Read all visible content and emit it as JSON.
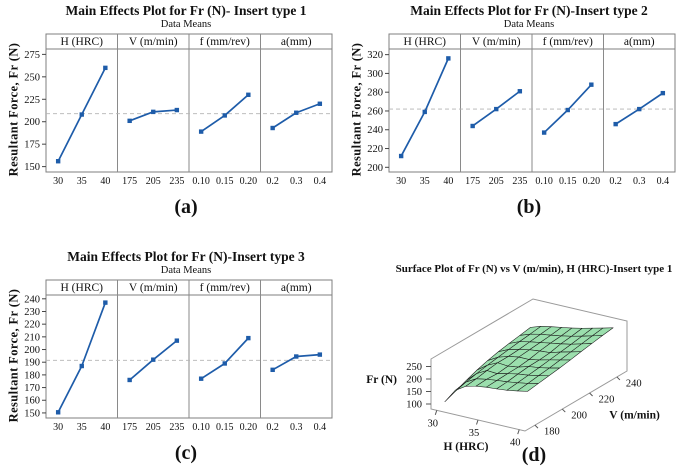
{
  "figure": {
    "background": "#ffffff",
    "accent_line_color": "#1E5CA9",
    "frame_color": "#7f7f7f",
    "mean_line_color": "#b3b3b3"
  },
  "chart_data": [
    {
      "id": "a",
      "type": "line",
      "variant": "main-effects",
      "title": "Main Effects Plot for Fr (N)- Insert type 1",
      "subtitle": "Data Means",
      "ylabel": "Resultant Force, Fr (N)",
      "caption": "(a)",
      "ylim": [
        144,
        281
      ],
      "yticks": [
        150,
        175,
        200,
        225,
        250,
        275
      ],
      "mean_line": 209,
      "line_color": "#1E5CA9",
      "marker": "square",
      "panels": [
        {
          "factor": "H (HRC)",
          "categories": [
            "30",
            "35",
            "40"
          ],
          "values": [
            156,
            208,
            260
          ]
        },
        {
          "factor": "V (m/min)",
          "categories": [
            "175",
            "205",
            "235"
          ],
          "values": [
            201,
            211,
            213
          ]
        },
        {
          "factor": "f (mm/rev)",
          "categories": [
            "0.10",
            "0.15",
            "0.20"
          ],
          "values": [
            189,
            207,
            230
          ]
        },
        {
          "factor": "a(mm)",
          "categories": [
            "0.2",
            "0.3",
            "0.4"
          ],
          "values": [
            193,
            210,
            220
          ]
        }
      ]
    },
    {
      "id": "b",
      "type": "line",
      "variant": "main-effects",
      "title": "Main Effects Plot for Fr (N)-Insert type 2",
      "subtitle": "Data Means",
      "ylabel": "Resultant Force, Fr (N)",
      "caption": "(b)",
      "ylim": [
        195,
        326
      ],
      "yticks": [
        200,
        220,
        240,
        260,
        280,
        300,
        320
      ],
      "mean_line": 262,
      "line_color": "#1E5CA9",
      "marker": "square",
      "panels": [
        {
          "factor": "H (HRC)",
          "categories": [
            "30",
            "35",
            "40"
          ],
          "values": [
            212,
            259,
            316
          ]
        },
        {
          "factor": "V (m/min)",
          "categories": [
            "175",
            "205",
            "235"
          ],
          "values": [
            244,
            262,
            281
          ]
        },
        {
          "factor": "f (mm/rev)",
          "categories": [
            "0.10",
            "0.15",
            "0.20"
          ],
          "values": [
            237,
            261,
            288
          ]
        },
        {
          "factor": "a(mm)",
          "categories": [
            "0.2",
            "0.3",
            "0.4"
          ],
          "values": [
            246,
            262,
            279
          ]
        }
      ]
    },
    {
      "id": "c",
      "type": "line",
      "variant": "main-effects",
      "title": "Main Effects Plot for Fr (N)-Insert type 3",
      "subtitle": "Data Means",
      "ylabel": "Resultant Force, Fr (N)",
      "caption": "(c)",
      "ylim": [
        146,
        243
      ],
      "yticks": [
        150,
        160,
        170,
        180,
        190,
        200,
        210,
        220,
        230,
        240
      ],
      "mean_line": 191.5,
      "line_color": "#1E5CA9",
      "marker": "square",
      "panels": [
        {
          "factor": "H (HRC)",
          "categories": [
            "30",
            "35",
            "40"
          ],
          "values": [
            150.5,
            187,
            237
          ]
        },
        {
          "factor": "V (m/min)",
          "categories": [
            "175",
            "205",
            "235"
          ],
          "values": [
            176,
            192,
            207
          ]
        },
        {
          "factor": "f (mm/rev)",
          "categories": [
            "0.10",
            "0.15",
            "0.20"
          ],
          "values": [
            177,
            189,
            209
          ]
        },
        {
          "factor": "a(mm)",
          "categories": [
            "0.2",
            "0.3",
            "0.4"
          ],
          "values": [
            184,
            194.5,
            196
          ]
        }
      ]
    },
    {
      "id": "d",
      "type": "surface",
      "title": "Surface Plot of Fr (N) vs V (m/min), H (HRC)-Insert type 1",
      "caption": "(d)",
      "xlabel": "H (HRC)",
      "ylabel": "V (m/min)",
      "zlabel": "Fr (N)",
      "xticks": [
        30,
        35,
        40
      ],
      "yticks": [
        180,
        200,
        220,
        240
      ],
      "zticks": [
        100,
        150,
        200,
        250
      ],
      "x_range": [
        30,
        40
      ],
      "y_range": [
        180,
        240
      ],
      "z_range_display": [
        80,
        280
      ],
      "surface_color": "#9BDFAD",
      "mesh_color": "#1a1a1a",
      "x_values": [
        30,
        31.25,
        32.5,
        33.75,
        35,
        36.25,
        37.5,
        38.75,
        40
      ],
      "y_values": [
        180,
        187.5,
        195,
        202.5,
        210,
        217.5,
        225,
        232.5,
        240
      ],
      "z_grid": [
        [
          95,
          150,
          176,
          186,
          192,
          195,
          199,
          206,
          214
        ],
        [
          112,
          158,
          181,
          189,
          194,
          198,
          204,
          211,
          220
        ],
        [
          130,
          167,
          189,
          186,
          196,
          204,
          209,
          217,
          226
        ],
        [
          146,
          175,
          195,
          191,
          197,
          209,
          214,
          222,
          232
        ],
        [
          159,
          182,
          195,
          202,
          202,
          210,
          220,
          229,
          239
        ],
        [
          169,
          188,
          198,
          206,
          211,
          214,
          226,
          236,
          247
        ],
        [
          177,
          194,
          203,
          210,
          217,
          224,
          232,
          243,
          254
        ],
        [
          184,
          199,
          208,
          214,
          221,
          229,
          239,
          250,
          261
        ],
        [
          191,
          205,
          213,
          220,
          227,
          236,
          246,
          256,
          267
        ]
      ]
    }
  ]
}
